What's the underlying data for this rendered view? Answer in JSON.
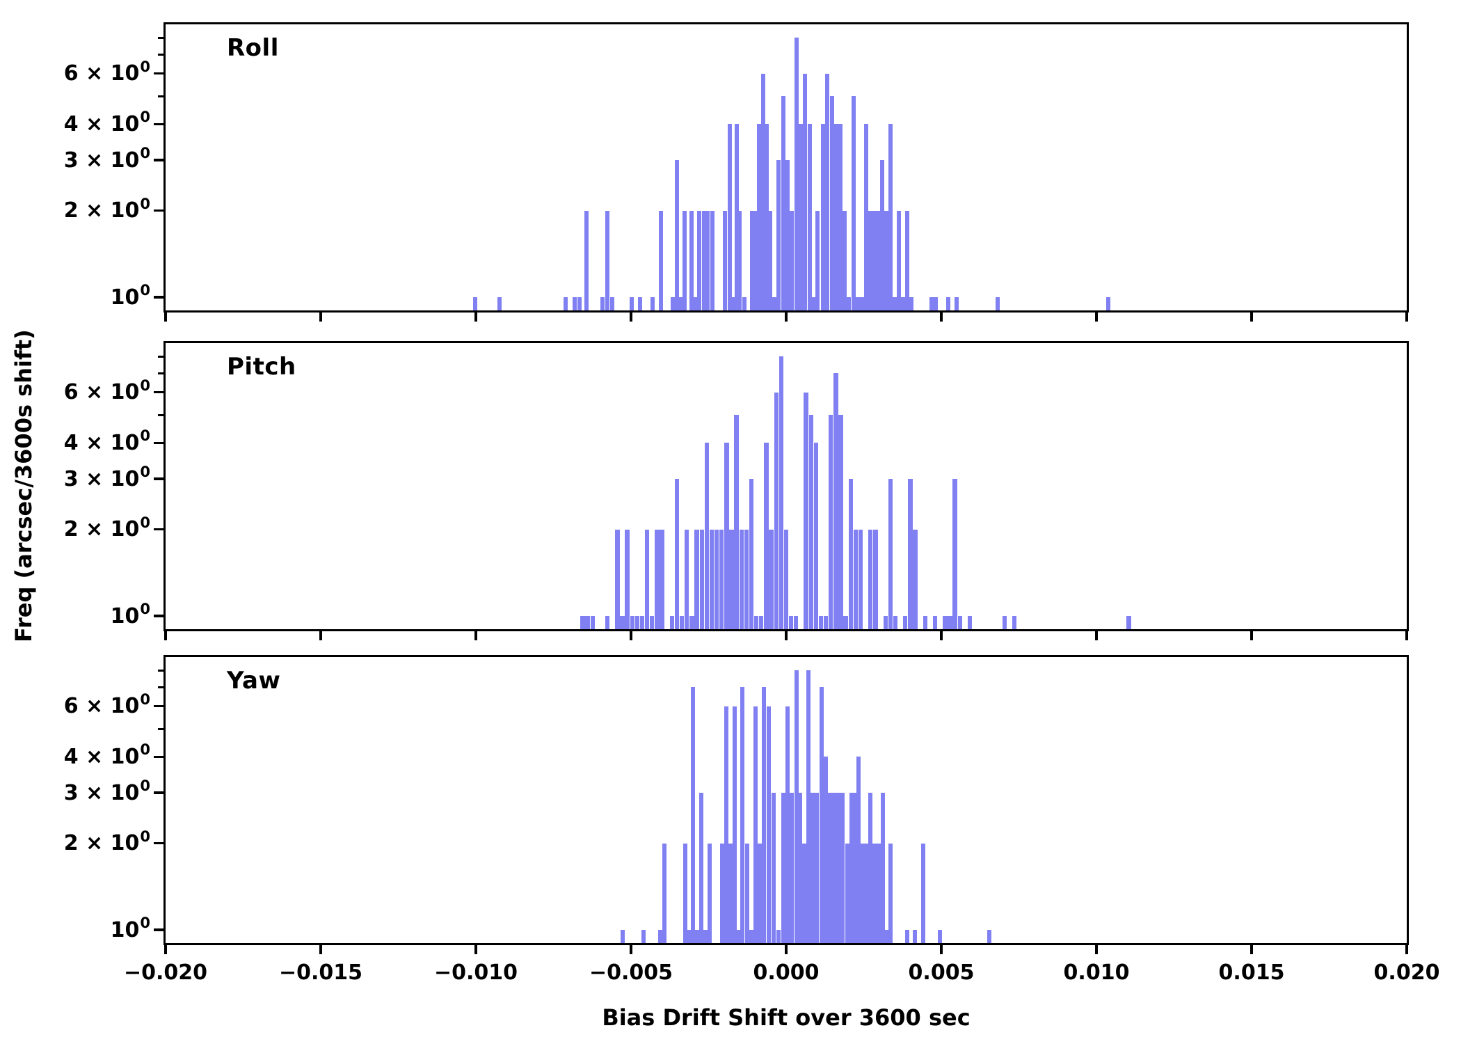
{
  "axes": {
    "xlabel": "Bias Drift Shift over 3600 sec",
    "ylabel": "Freq (arcsec/3600s shift)",
    "xlim": [
      -0.02,
      0.02
    ],
    "ylim": [
      0.9,
      8.9
    ],
    "yscale": "log",
    "grid": false,
    "x_tick_values": [
      -0.02,
      -0.015,
      -0.01,
      -0.005,
      0.0,
      0.005,
      0.01,
      0.015,
      0.02
    ],
    "x_tick_labels": [
      "−0.020",
      "−0.015",
      "−0.010",
      "−0.005",
      "0.000",
      "0.005",
      "0.010",
      "0.015",
      "0.020"
    ],
    "y_ticks": [
      {
        "v": 1,
        "base": "10",
        "sup": "0"
      },
      {
        "v": 2,
        "base": "2 × 10",
        "sup": "0"
      },
      {
        "v": 3,
        "base": "3 × 10",
        "sup": "0"
      },
      {
        "v": 4,
        "base": "4 × 10",
        "sup": "0"
      },
      {
        "v": 6,
        "base": "6 × 10",
        "sup": "0"
      }
    ],
    "y_minor_tick_values": [
      5,
      7,
      8
    ],
    "bar_color": "#8080F2",
    "axis_color": "#000000"
  },
  "chart_data": [
    {
      "type": "bar",
      "title": "Roll",
      "bin_width": 0.00016,
      "bars": [
        [
          -0.01002,
          1
        ],
        [
          -0.00924,
          1
        ],
        [
          -0.00711,
          1
        ],
        [
          -0.00682,
          1
        ],
        [
          -0.00666,
          1
        ],
        [
          -0.00643,
          2
        ],
        [
          -0.00592,
          1
        ],
        [
          -0.00576,
          2
        ],
        [
          -0.00561,
          1
        ],
        [
          -0.00498,
          1
        ],
        [
          -0.00471,
          1
        ],
        [
          -0.0043,
          1
        ],
        [
          -0.00404,
          2
        ],
        [
          -0.00366,
          1
        ],
        [
          -0.00352,
          3
        ],
        [
          -0.00339,
          1
        ],
        [
          -0.00327,
          2
        ],
        [
          -0.00305,
          2
        ],
        [
          -0.00294,
          1
        ],
        [
          -0.0028,
          2
        ],
        [
          -0.00265,
          2
        ],
        [
          -0.00253,
          2
        ],
        [
          -0.00238,
          2
        ],
        [
          -0.00197,
          2
        ],
        [
          -0.00182,
          4
        ],
        [
          -0.0017,
          1
        ],
        [
          -0.00159,
          4
        ],
        [
          -0.0015,
          2
        ],
        [
          -0.00135,
          1
        ],
        [
          -0.0011,
          2
        ],
        [
          -0.00099,
          2
        ],
        [
          -0.00087,
          4
        ],
        [
          -0.00074,
          6
        ],
        [
          -0.00063,
          4
        ],
        [
          -0.00052,
          2
        ],
        [
          -0.00038,
          1
        ],
        [
          -0.00025,
          3
        ],
        [
          -9e-05,
          5
        ],
        [
          4e-05,
          3
        ],
        [
          0.00018,
          2
        ],
        [
          0.00034,
          8
        ],
        [
          0.00047,
          4
        ],
        [
          0.00061,
          6
        ],
        [
          0.00076,
          4
        ],
        [
          0.0009,
          1
        ],
        [
          0.00101,
          2
        ],
        [
          0.00119,
          4
        ],
        [
          0.00132,
          6
        ],
        [
          0.00148,
          5
        ],
        [
          0.00161,
          4
        ],
        [
          0.00175,
          4
        ],
        [
          0.00188,
          2
        ],
        [
          0.00202,
          1
        ],
        [
          0.00217,
          5
        ],
        [
          0.00231,
          1
        ],
        [
          0.00244,
          1
        ],
        [
          0.00258,
          4
        ],
        [
          0.00271,
          2
        ],
        [
          0.00285,
          2
        ],
        [
          0.00298,
          2
        ],
        [
          0.00309,
          3
        ],
        [
          0.00323,
          2
        ],
        [
          0.00336,
          4
        ],
        [
          0.0035,
          1
        ],
        [
          0.00363,
          2
        ],
        [
          0.00377,
          1
        ],
        [
          0.0039,
          2
        ],
        [
          0.00404,
          1
        ],
        [
          0.00469,
          1
        ],
        [
          0.00482,
          1
        ],
        [
          0.00522,
          1
        ],
        [
          0.00549,
          1
        ],
        [
          0.00682,
          1
        ],
        [
          0.01038,
          1
        ]
      ]
    },
    {
      "type": "bar",
      "title": "Pitch",
      "bin_width": 0.00016,
      "bars": [
        [
          -0.00656,
          1
        ],
        [
          -0.0064,
          1
        ],
        [
          -0.00624,
          1
        ],
        [
          -0.00576,
          1
        ],
        [
          -0.00544,
          2
        ],
        [
          -0.00528,
          1
        ],
        [
          -0.00512,
          2
        ],
        [
          -0.00496,
          1
        ],
        [
          -0.0048,
          1
        ],
        [
          -0.00464,
          1
        ],
        [
          -0.00448,
          2
        ],
        [
          -0.00432,
          1
        ],
        [
          -0.00416,
          2
        ],
        [
          -0.004,
          2
        ],
        [
          -0.00368,
          1
        ],
        [
          -0.00352,
          3
        ],
        [
          -0.00336,
          1
        ],
        [
          -0.0032,
          2
        ],
        [
          -0.00304,
          1
        ],
        [
          -0.00288,
          2
        ],
        [
          -0.00272,
          2
        ],
        [
          -0.00256,
          4
        ],
        [
          -0.0024,
          2
        ],
        [
          -0.00224,
          2
        ],
        [
          -0.00208,
          2
        ],
        [
          -0.00192,
          4
        ],
        [
          -0.00176,
          2
        ],
        [
          -0.0016,
          5
        ],
        [
          -0.00144,
          2
        ],
        [
          -0.00128,
          2
        ],
        [
          -0.00112,
          3
        ],
        [
          -0.00096,
          1
        ],
        [
          -0.0008,
          1
        ],
        [
          -0.00064,
          4
        ],
        [
          -0.00048,
          2
        ],
        [
          -0.00032,
          6
        ],
        [
          -0.00016,
          8
        ],
        [
          0.0,
          2
        ],
        [
          0.00016,
          1
        ],
        [
          0.00032,
          1
        ],
        [
          0.00064,
          6
        ],
        [
          0.0008,
          5
        ],
        [
          0.00096,
          4
        ],
        [
          0.00112,
          1
        ],
        [
          0.00128,
          1
        ],
        [
          0.00144,
          5
        ],
        [
          0.0016,
          7
        ],
        [
          0.00176,
          5
        ],
        [
          0.00192,
          1
        ],
        [
          0.00208,
          3
        ],
        [
          0.00224,
          2
        ],
        [
          0.0024,
          2
        ],
        [
          0.00272,
          2
        ],
        [
          0.00288,
          2
        ],
        [
          0.0032,
          1
        ],
        [
          0.00336,
          3
        ],
        [
          0.00352,
          1
        ],
        [
          0.00384,
          1
        ],
        [
          0.004,
          3
        ],
        [
          0.00416,
          2
        ],
        [
          0.00448,
          1
        ],
        [
          0.0048,
          1
        ],
        [
          0.00512,
          1
        ],
        [
          0.00528,
          1
        ],
        [
          0.00544,
          3
        ],
        [
          0.0056,
          1
        ],
        [
          0.00592,
          1
        ],
        [
          0.00704,
          1
        ],
        [
          0.00736,
          1
        ],
        [
          0.01104,
          1
        ]
      ]
    },
    {
      "type": "bar",
      "title": "Yaw",
      "bin_width": 0.00016,
      "bars": [
        [
          -0.00527,
          1
        ],
        [
          -0.0046,
          1
        ],
        [
          -0.00406,
          1
        ],
        [
          -0.00392,
          2
        ],
        [
          -0.00325,
          2
        ],
        [
          -0.00312,
          1
        ],
        [
          -0.003,
          7
        ],
        [
          -0.00287,
          1
        ],
        [
          -0.00274,
          3
        ],
        [
          -0.0026,
          1
        ],
        [
          -0.00247,
          2
        ],
        [
          -0.00206,
          2
        ],
        [
          -0.00193,
          6
        ],
        [
          -0.00179,
          2
        ],
        [
          -0.00166,
          6
        ],
        [
          -0.00152,
          1
        ],
        [
          -0.00141,
          7
        ],
        [
          -0.00126,
          2
        ],
        [
          -0.00112,
          1
        ],
        [
          -0.00099,
          6
        ],
        [
          -0.00085,
          2
        ],
        [
          -0.00072,
          7
        ],
        [
          -0.00056,
          6
        ],
        [
          -0.0004,
          3
        ],
        [
          -0.00025,
          1
        ],
        [
          -9e-05,
          3
        ],
        [
          4e-05,
          6
        ],
        [
          0.00018,
          3
        ],
        [
          0.00034,
          8
        ],
        [
          0.00045,
          3
        ],
        [
          0.00058,
          2
        ],
        [
          0.00072,
          8
        ],
        [
          0.00085,
          3
        ],
        [
          0.00099,
          3
        ],
        [
          0.00114,
          7
        ],
        [
          0.00128,
          4
        ],
        [
          0.00141,
          3
        ],
        [
          0.00155,
          3
        ],
        [
          0.00168,
          3
        ],
        [
          0.00182,
          3
        ],
        [
          0.00197,
          2
        ],
        [
          0.00211,
          3
        ],
        [
          0.00222,
          3
        ],
        [
          0.00233,
          4
        ],
        [
          0.00247,
          2
        ],
        [
          0.0026,
          2
        ],
        [
          0.00271,
          3
        ],
        [
          0.00285,
          2
        ],
        [
          0.00298,
          2
        ],
        [
          0.00312,
          3
        ],
        [
          0.00325,
          1
        ],
        [
          0.00336,
          2
        ],
        [
          0.0039,
          1
        ],
        [
          0.00415,
          1
        ],
        [
          0.00442,
          2
        ],
        [
          0.00495,
          1
        ],
        [
          0.00655,
          1
        ]
      ]
    }
  ]
}
